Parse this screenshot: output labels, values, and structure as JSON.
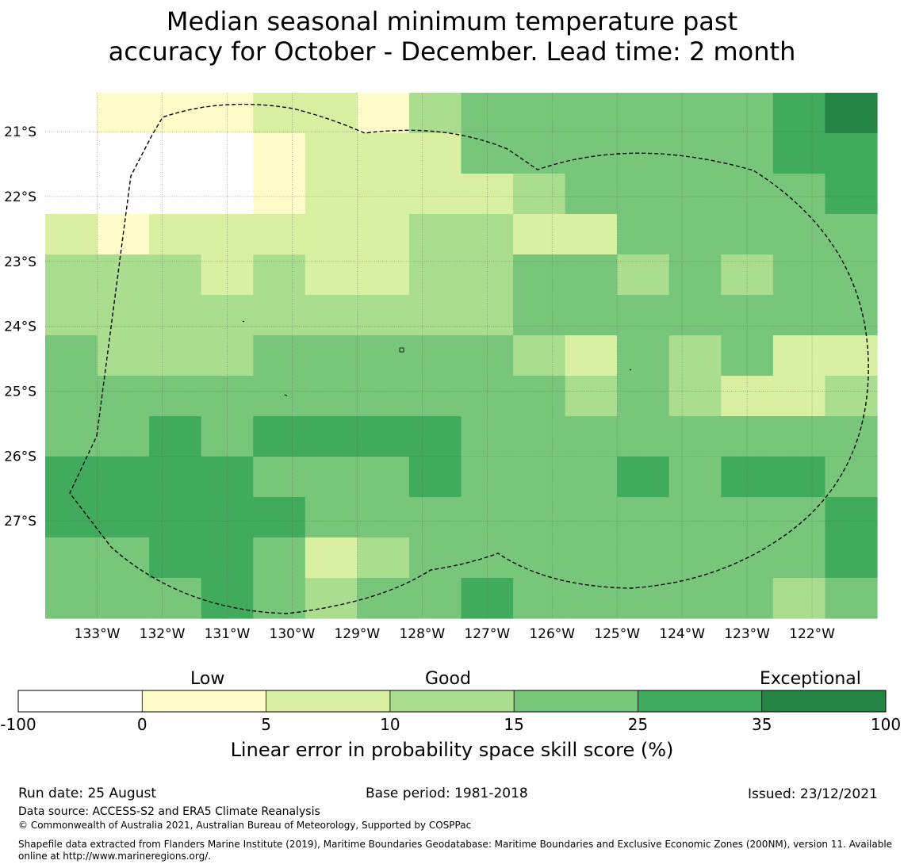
{
  "title": {
    "line1": "Median seasonal minimum temperature past",
    "line2": "accuracy for October - December. Lead time: 2 month"
  },
  "map": {
    "lat_labels": [
      "21°S",
      "22°S",
      "23°S",
      "24°S",
      "25°S",
      "26°S",
      "27°S"
    ],
    "lon_labels": [
      "133°W",
      "132°W",
      "131°W",
      "130°W",
      "129°W",
      "128°W",
      "127°W",
      "126°W",
      "125°W",
      "124°W",
      "123°W",
      "122°W"
    ],
    "lon_range": [
      -133.8,
      -121.0
    ],
    "lat_range": [
      -28.5,
      -20.4
    ],
    "grid_cell_deg": 0.833,
    "grid_columns": 16,
    "grid_rows": 13,
    "grid_classes": [
      [
        0,
        1,
        1,
        1,
        2,
        2,
        1,
        3,
        4,
        4,
        4,
        4,
        4,
        4,
        5,
        6
      ],
      [
        0,
        0,
        0,
        0,
        1,
        2,
        2,
        2,
        4,
        4,
        4,
        4,
        4,
        4,
        5,
        5
      ],
      [
        0,
        0,
        0,
        0,
        1,
        2,
        2,
        2,
        2,
        3,
        4,
        4,
        4,
        4,
        4,
        5
      ],
      [
        2,
        1,
        2,
        2,
        2,
        2,
        2,
        3,
        3,
        2,
        2,
        4,
        4,
        4,
        4,
        4
      ],
      [
        3,
        3,
        3,
        2,
        3,
        2,
        2,
        3,
        3,
        4,
        4,
        3,
        4,
        3,
        4,
        4
      ],
      [
        3,
        3,
        3,
        3,
        3,
        3,
        3,
        3,
        3,
        4,
        4,
        4,
        4,
        4,
        4,
        4
      ],
      [
        4,
        3,
        3,
        3,
        4,
        4,
        4,
        4,
        4,
        3,
        2,
        4,
        3,
        4,
        2,
        2
      ],
      [
        4,
        4,
        4,
        4,
        4,
        4,
        4,
        4,
        4,
        4,
        3,
        4,
        3,
        2,
        2,
        3
      ],
      [
        4,
        4,
        5,
        4,
        5,
        5,
        5,
        5,
        4,
        4,
        4,
        4,
        4,
        4,
        4,
        4
      ],
      [
        5,
        5,
        5,
        5,
        4,
        4,
        4,
        5,
        4,
        4,
        4,
        5,
        4,
        5,
        5,
        4
      ],
      [
        5,
        5,
        5,
        5,
        5,
        4,
        4,
        4,
        4,
        4,
        4,
        4,
        4,
        4,
        4,
        5
      ],
      [
        4,
        4,
        5,
        5,
        4,
        2,
        3,
        4,
        4,
        4,
        4,
        4,
        4,
        4,
        4,
        5
      ],
      [
        4,
        4,
        4,
        5,
        4,
        3,
        4,
        4,
        5,
        4,
        4,
        4,
        4,
        4,
        3,
        4
      ]
    ]
  },
  "colorbar": {
    "categories": [
      "Low",
      "Good",
      "Exceptional"
    ],
    "ticks": [
      "-100",
      "0",
      "5",
      "10",
      "15",
      "25",
      "35",
      "100"
    ],
    "colors": [
      "#ffffff",
      "#fefcc9",
      "#d9efa1",
      "#aade8e",
      "#77c67a",
      "#41ab5d",
      "#238443"
    ],
    "label": "Linear error in probability space skill score (%)"
  },
  "footer": {
    "run_date": "Run date: 25 August",
    "base_period": "Base period: 1981-2018",
    "issued": "Issued: 23/12/2021",
    "data_source": "Data source: ACCESS-S2 and ERA5 Climate Reanalysis",
    "copyright": "© Commonwealth of Australia 2021, Australian Bureau of Meteorology, Supported by COSPPac",
    "shapefile1": "Shapefile data extracted from Flanders Marine Institute (2019), Maritime Boundaries Geodatabase: Maritime Boundaries and Exclusive Economic Zones (200NM), version 11. Available",
    "shapefile2": "online at http://www.marineregions.org/."
  }
}
